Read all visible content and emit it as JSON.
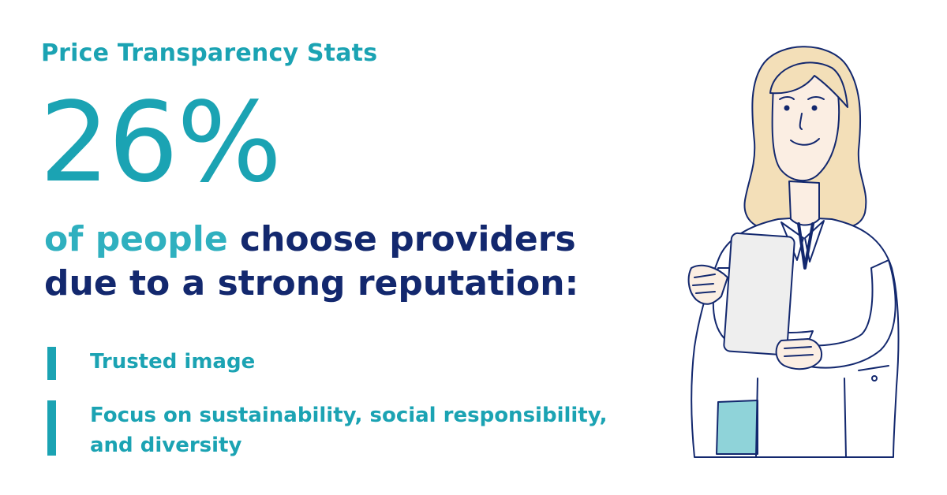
{
  "header": {
    "kicker": "Price Transparency Stats"
  },
  "stat": {
    "value": "26%"
  },
  "headline": {
    "accent": "of people",
    "rest": " choose providers due to a strong reputation:"
  },
  "bullets": [
    {
      "text": "Trusted image"
    },
    {
      "text": "Focus on sustainability, social responsibility, and diversity"
    }
  ],
  "illustration": {
    "icon": "doctor-with-tablet-illustration"
  },
  "colors": {
    "teal": "#1ba3b3",
    "teal_light": "#2fb0bf",
    "navy": "#13286e",
    "hair": "#f3dfb8",
    "skin": "#fbeee3",
    "scrubs": "#8fd3d9",
    "tablet": "#eeeeee"
  }
}
